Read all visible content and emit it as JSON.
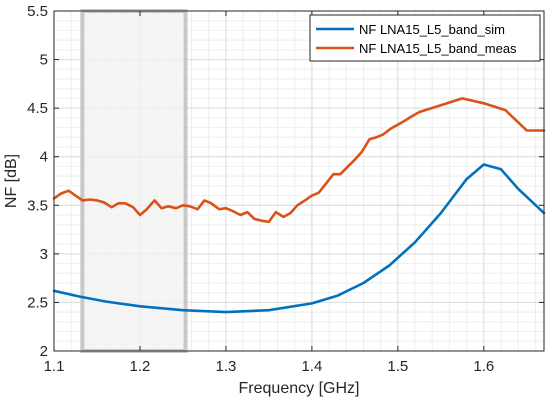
{
  "chart_data": {
    "type": "line",
    "xlabel": "Frequency [GHz]",
    "ylabel": "NF [dB]",
    "xlim": [
      1.1,
      1.67
    ],
    "ylim": [
      2,
      5.5
    ],
    "x_ticks": [
      "1.1",
      "1.2",
      "1.3",
      "1.4",
      "1.5",
      "1.6"
    ],
    "y_ticks": [
      "2",
      "2.5",
      "3",
      "3.5",
      "4",
      "4.5",
      "5",
      "5.5"
    ],
    "grid": "major and minor",
    "legend_position": "top-right",
    "highlight_band": {
      "x_range": [
        1.133,
        1.253
      ],
      "color": "#c8c8c8"
    },
    "series": [
      {
        "name": "NF LNA15_L5_band_sim",
        "color": "#0072BD",
        "x": [
          1.1,
          1.13,
          1.16,
          1.2,
          1.25,
          1.3,
          1.35,
          1.4,
          1.43,
          1.46,
          1.49,
          1.52,
          1.55,
          1.58,
          1.6,
          1.62,
          1.64,
          1.67
        ],
        "y": [
          2.62,
          2.56,
          2.51,
          2.46,
          2.42,
          2.4,
          2.42,
          2.49,
          2.57,
          2.7,
          2.88,
          3.12,
          3.42,
          3.77,
          3.92,
          3.87,
          3.67,
          3.42
        ]
      },
      {
        "name": "NF LNA15_L5_band_meas",
        "color": "#D95319",
        "x": [
          1.1,
          1.108,
          1.117,
          1.125,
          1.133,
          1.142,
          1.15,
          1.158,
          1.167,
          1.175,
          1.183,
          1.192,
          1.2,
          1.208,
          1.217,
          1.225,
          1.233,
          1.242,
          1.25,
          1.258,
          1.267,
          1.275,
          1.283,
          1.292,
          1.3,
          1.308,
          1.317,
          1.325,
          1.333,
          1.342,
          1.35,
          1.358,
          1.367,
          1.375,
          1.383,
          1.392,
          1.4,
          1.408,
          1.417,
          1.425,
          1.433,
          1.442,
          1.45,
          1.458,
          1.467,
          1.475,
          1.483,
          1.492,
          1.5,
          1.508,
          1.517,
          1.525,
          1.55,
          1.575,
          1.6,
          1.625,
          1.65,
          1.67
        ],
        "y": [
          3.57,
          3.62,
          3.65,
          3.6,
          3.55,
          3.56,
          3.55,
          3.53,
          3.48,
          3.52,
          3.52,
          3.48,
          3.4,
          3.46,
          3.55,
          3.47,
          3.49,
          3.47,
          3.5,
          3.49,
          3.46,
          3.55,
          3.52,
          3.46,
          3.47,
          3.44,
          3.4,
          3.43,
          3.36,
          3.34,
          3.33,
          3.43,
          3.38,
          3.42,
          3.5,
          3.55,
          3.6,
          3.63,
          3.73,
          3.82,
          3.82,
          3.9,
          3.97,
          4.05,
          4.18,
          4.2,
          4.23,
          4.29,
          4.33,
          4.37,
          4.42,
          4.46,
          4.53,
          4.6,
          4.55,
          4.48,
          4.27,
          4.27
        ]
      }
    ]
  }
}
